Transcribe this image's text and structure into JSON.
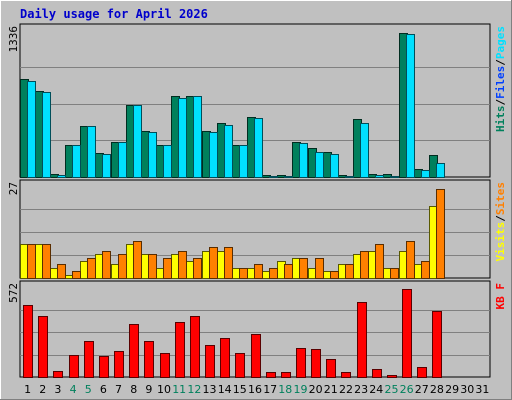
{
  "chart_data": {
    "type": "bar",
    "title": "Daily usage for April 2026",
    "days": [
      "1",
      "2",
      "3",
      "4",
      "5",
      "6",
      "7",
      "8",
      "9",
      "10",
      "11",
      "12",
      "13",
      "14",
      "15",
      "16",
      "17",
      "18",
      "19",
      "20",
      "21",
      "22",
      "23",
      "24",
      "25",
      "26",
      "27",
      "28",
      "29",
      "30",
      "31"
    ],
    "weekend_days": [
      "4",
      "5",
      "11",
      "12",
      "18",
      "19",
      "25",
      "26"
    ],
    "panels": [
      {
        "id": "hits",
        "max_label": "1336",
        "ymax": 1336,
        "legend": [
          {
            "text": "Hits",
            "color": "#00805c"
          },
          {
            "text": "/",
            "color": "#000000"
          },
          {
            "text": "Files",
            "color": "#0040ff"
          },
          {
            "text": "/",
            "color": "#000000"
          },
          {
            "text": "Pages",
            "color": "#00e0ff"
          }
        ],
        "series": [
          {
            "name": "Hits",
            "color": "#00805c",
            "values": [
              890,
              780,
              25,
              295,
              465,
              215,
              320,
              650,
              420,
              295,
              740,
              740,
              420,
              490,
              295,
              545,
              15,
              15,
              315,
              265,
              230,
              15,
              530,
              25,
              25,
              1310,
              75,
              200,
              0,
              0,
              0
            ]
          },
          {
            "name": "Pages",
            "color": "#00e0ff",
            "values": [
              870,
              770,
              15,
              295,
              460,
              205,
              320,
              650,
              405,
              295,
              720,
              735,
              410,
              470,
              295,
              535,
              10,
              8,
              305,
              225,
              210,
              5,
              490,
              20,
              10,
              1300,
              65,
              130,
              0,
              0,
              0
            ]
          }
        ]
      },
      {
        "id": "visits",
        "max_label": "27",
        "ymax": 27,
        "legend": [
          {
            "text": "Visits",
            "color": "#ffff00"
          },
          {
            "text": "/",
            "color": "#000000"
          },
          {
            "text": "Sites",
            "color": "#ff8000"
          }
        ],
        "series": [
          {
            "name": "Visits",
            "color": "#ffff00",
            "values": [
              10,
              10,
              3,
              1,
              5,
              7,
              4,
              10,
              7,
              3,
              7,
              5,
              8,
              8,
              3,
              3,
              2,
              5,
              6,
              3,
              2,
              4,
              7,
              8,
              3,
              8,
              4,
              21,
              0,
              0,
              0
            ]
          },
          {
            "name": "Sites",
            "color": "#ff8000",
            "values": [
              10,
              10,
              4,
              2,
              6,
              8,
              7,
              11,
              7,
              6,
              8,
              6,
              9,
              9,
              3,
              4,
              3,
              4,
              6,
              6,
              2,
              4,
              8,
              10,
              3,
              11,
              5,
              26,
              0,
              0,
              0
            ]
          }
        ]
      },
      {
        "id": "kbytes",
        "max_label": "572",
        "ymax": 572,
        "legend": [
          {
            "text": "KB F",
            "color": "#ff0000"
          }
        ],
        "series": [
          {
            "name": "KB F",
            "color": "#ff0000",
            "values": [
              455,
              385,
              35,
              140,
              230,
              135,
              165,
              340,
              230,
              155,
              350,
              390,
              205,
              250,
              150,
              275,
              30,
              30,
              185,
              175,
              115,
              30,
              475,
              50,
              15,
              560,
              65,
              420,
              0,
              0,
              0
            ]
          }
        ]
      }
    ]
  }
}
